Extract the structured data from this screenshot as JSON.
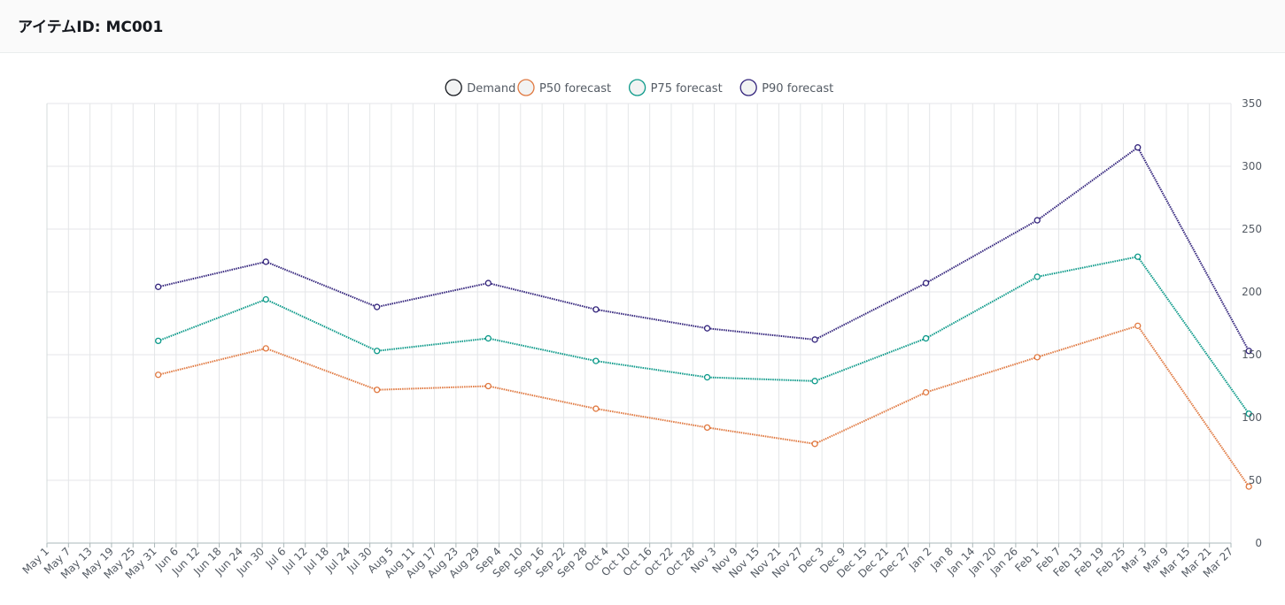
{
  "header": {
    "title": "アイテムID: MC001"
  },
  "chart_data": {
    "type": "line",
    "title": "アイテムID: MC001",
    "x_labels": [
      "May 1",
      "May 7",
      "May 13",
      "May 19",
      "May 25",
      "May 31",
      "Jun 6",
      "Jun 12",
      "Jun 18",
      "Jun 24",
      "Jun 30",
      "Jul 6",
      "Jul 12",
      "Jul 18",
      "Jul 24",
      "Jul 30",
      "Aug 5",
      "Aug 11",
      "Aug 17",
      "Aug 23",
      "Aug 29",
      "Sep 4",
      "Sep 10",
      "Sep 16",
      "Sep 22",
      "Sep 28",
      "Oct 4",
      "Oct 10",
      "Oct 16",
      "Oct 22",
      "Oct 28",
      "Nov 3",
      "Nov 9",
      "Nov 15",
      "Nov 21",
      "Nov 27",
      "Dec 3",
      "Dec 9",
      "Dec 15",
      "Dec 21",
      "Dec 27",
      "Jan 2",
      "Jan 8",
      "Jan 14",
      "Jan 20",
      "Jan 26",
      "Feb 1",
      "Feb 7",
      "Feb 13",
      "Feb 19",
      "Feb 25",
      "Mar 3",
      "Mar 9",
      "Mar 15",
      "Mar 21",
      "Mar 27"
    ],
    "point_labels": [
      "Jun 1",
      "Jul 1",
      "Aug 1",
      "Sep 1",
      "Oct 1",
      "Nov 1",
      "Dec 1",
      "Jan 1",
      "Feb 1",
      "Mar 1",
      "Apr 1"
    ],
    "point_index": [
      5.17,
      10.17,
      15.33,
      20.5,
      25.5,
      30.67,
      35.67,
      40.83,
      46,
      50.67,
      55.83
    ],
    "ylim": [
      0,
      350
    ],
    "yticks": [
      0,
      50,
      100,
      150,
      200,
      250,
      300,
      350
    ],
    "y_axis_position": "right",
    "grid": true,
    "legend_position": "top-center",
    "series": [
      {
        "name": "Demand",
        "color": "#16191f",
        "values": []
      },
      {
        "name": "P50 forecast",
        "color": "#e07941",
        "values": [
          134,
          155,
          122,
          125,
          107,
          92,
          79,
          120,
          148,
          173,
          45
        ]
      },
      {
        "name": "P75 forecast",
        "color": "#0d9a8a",
        "values": [
          161,
          194,
          153,
          163,
          145,
          132,
          129,
          163,
          212,
          228,
          103
        ]
      },
      {
        "name": "P90 forecast",
        "color": "#33247c",
        "values": [
          204,
          224,
          188,
          207,
          186,
          171,
          162,
          207,
          257,
          315,
          153
        ]
      }
    ]
  }
}
